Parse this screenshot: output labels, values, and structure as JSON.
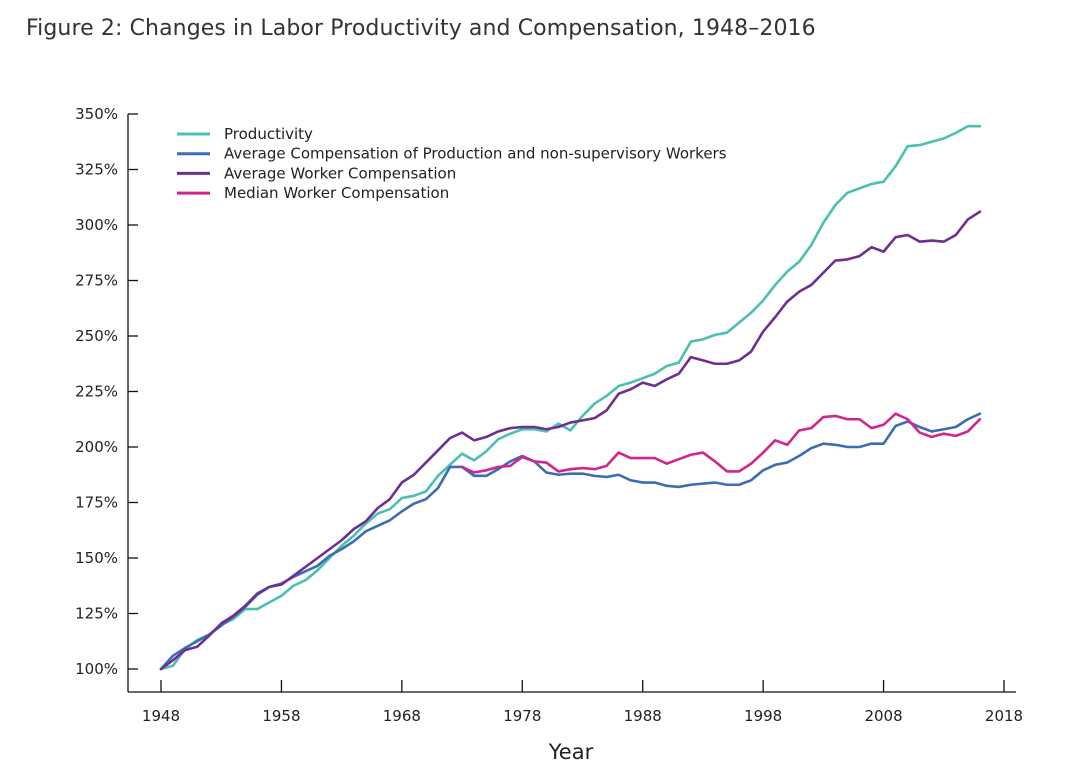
{
  "title": "Figure 2: Changes in Labor Productivity and Compensation, 1948–2016",
  "chart_data": {
    "type": "line",
    "xlabel": "Year",
    "ylabel": "",
    "xlim": [
      1948,
      2018
    ],
    "ylim": [
      100,
      350
    ],
    "x_ticks": [
      1948,
      1958,
      1968,
      1978,
      1988,
      1998,
      2008,
      2018
    ],
    "y_ticks": [
      100,
      125,
      150,
      175,
      200,
      225,
      250,
      275,
      300,
      325,
      350
    ],
    "y_tick_labels": [
      "100%",
      "125%",
      "150%",
      "175%",
      "200%",
      "225%",
      "250%",
      "275%",
      "300%",
      "325%",
      "350%"
    ],
    "x_tick_labels": [
      "1948",
      "1958",
      "1968",
      "1978",
      "1988",
      "1998",
      "2008",
      "2018"
    ],
    "legend_position": "top-left",
    "grid": false,
    "x": [
      1948,
      1949,
      1950,
      1951,
      1952,
      1953,
      1954,
      1955,
      1956,
      1957,
      1958,
      1959,
      1960,
      1961,
      1962,
      1963,
      1964,
      1965,
      1966,
      1967,
      1968,
      1969,
      1970,
      1971,
      1972,
      1973,
      1974,
      1975,
      1976,
      1977,
      1978,
      1979,
      1980,
      1981,
      1982,
      1983,
      1984,
      1985,
      1986,
      1987,
      1988,
      1989,
      1990,
      1991,
      1992,
      1993,
      1994,
      1995,
      1996,
      1997,
      1998,
      1999,
      2000,
      2001,
      2002,
      2003,
      2004,
      2005,
      2006,
      2007,
      2008,
      2009,
      2010,
      2011,
      2012,
      2013,
      2014,
      2015,
      2016
    ],
    "series": [
      {
        "name": "Productivity",
        "color": "#4bbfb2",
        "values": [
          100,
          101.5,
          109,
          113,
          115.5,
          120,
          122.5,
          127,
          127,
          130,
          133,
          137.5,
          140,
          144.5,
          150,
          155.5,
          160,
          165.5,
          170,
          172,
          177,
          178,
          180,
          187,
          192,
          197,
          194,
          198,
          203.5,
          206,
          208,
          208,
          207,
          210.5,
          207.5,
          214,
          219.5,
          223,
          227.5,
          229,
          231,
          233,
          236.5,
          238,
          247.5,
          248.5,
          250.5,
          251.5,
          256,
          260.5,
          266,
          273,
          279,
          283.5,
          291,
          301,
          309,
          314.5,
          316.5,
          318.5,
          319.5,
          326.5,
          335.5,
          336,
          337.5,
          339,
          341.5,
          344.5,
          344.5
        ]
      },
      {
        "name": "Average Compensation of Production and non-supervisory Workers",
        "color": "#3b6db0",
        "values": [
          100,
          106,
          109.5,
          112.5,
          115.5,
          119.5,
          123.5,
          128,
          133.5,
          137,
          138.5,
          141.5,
          144,
          146.5,
          151,
          154,
          157.5,
          162,
          164.5,
          167,
          171,
          174.5,
          176.5,
          181.5,
          191,
          191,
          187,
          187,
          190,
          193.5,
          196,
          193.5,
          188.5,
          187.5,
          188,
          188,
          187,
          186.5,
          187.5,
          185,
          184,
          184,
          182.5,
          182,
          183,
          183.5,
          184,
          183,
          183,
          185,
          189.5,
          192,
          193,
          196,
          199.5,
          201.5,
          201,
          200,
          200,
          201.5,
          201.5,
          209.5,
          211.5,
          209,
          207,
          208,
          209,
          212.5,
          215
        ]
      },
      {
        "name": "Average Worker Compensation",
        "color": "#6e2f91",
        "values": [
          100,
          104,
          108.5,
          110,
          115,
          120.5,
          124,
          128.5,
          134,
          137,
          138,
          142,
          146,
          150,
          154,
          158,
          163,
          166.5,
          172.5,
          176.5,
          184,
          187.5,
          193,
          198.5,
          204,
          206.5,
          203,
          204.5,
          207,
          208.5,
          209,
          209,
          208,
          209,
          211,
          212,
          213,
          216.5,
          224,
          226,
          229,
          227.5,
          230.5,
          233,
          240.5,
          239,
          237.5,
          237.5,
          239,
          243,
          252,
          258.5,
          265.5,
          270,
          273,
          278.5,
          284,
          284.5,
          286,
          290,
          288,
          294.5,
          295.5,
          292.5,
          293,
          292.5,
          295.5,
          302.5,
          306
        ]
      },
      {
        "name": "Median Worker Compensation",
        "color": "#d0258f",
        "values": [
          null,
          null,
          null,
          null,
          null,
          null,
          null,
          null,
          null,
          null,
          null,
          null,
          null,
          null,
          null,
          null,
          null,
          null,
          null,
          null,
          null,
          null,
          null,
          null,
          null,
          191,
          188.5,
          189.5,
          191,
          191.5,
          195.5,
          193.5,
          193,
          189,
          190,
          190.5,
          190,
          191.5,
          197.5,
          195,
          195,
          195,
          192.5,
          194.5,
          196.5,
          197.5,
          193.5,
          189,
          189,
          192.5,
          197.5,
          203,
          201,
          207.5,
          208.5,
          213.5,
          214,
          212.5,
          212.5,
          208.5,
          210,
          215,
          212.5,
          206.5,
          204.5,
          206,
          205,
          207,
          212.5
        ]
      }
    ]
  }
}
